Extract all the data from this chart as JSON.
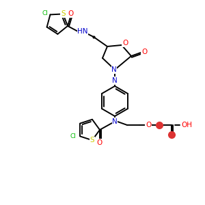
{
  "bg_color": "#ffffff",
  "atom_colors": {
    "C": "#000000",
    "N": "#0000cc",
    "O": "#ff0000",
    "S": "#cccc00",
    "Cl": "#00bb00",
    "H": "#000000"
  },
  "figsize": [
    3.0,
    3.0
  ],
  "dpi": 100,
  "bond_lw": 1.4,
  "fs": 7.5,
  "fs_small": 6.5
}
